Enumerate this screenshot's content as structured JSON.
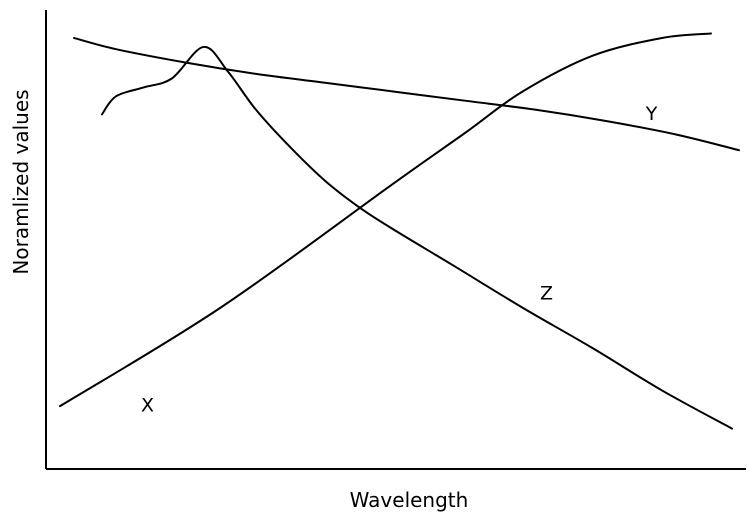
{
  "chart_data": {
    "type": "line",
    "title": "",
    "xlabel": "Wavelength",
    "ylabel": "Noramlized values",
    "xlim": [
      0,
      100
    ],
    "ylim": [
      0,
      100
    ],
    "grid": false,
    "legend": "none",
    "series": [
      {
        "name": "X",
        "x": [
          2,
          25,
          50,
          60,
          68,
          78,
          88,
          95
        ],
        "y": [
          14,
          36,
          64,
          75,
          84,
          92,
          96,
          97
        ]
      },
      {
        "name": "Y",
        "x": [
          4,
          10,
          20,
          30,
          40,
          50,
          60,
          70,
          80,
          90,
          99
        ],
        "y": [
          96,
          93.5,
          90.5,
          88,
          86,
          84,
          82,
          80,
          77.5,
          74.5,
          71
        ]
      },
      {
        "name": "Z",
        "x": [
          8,
          10,
          14,
          18,
          22.5,
          26,
          30,
          35,
          40,
          45,
          50,
          58,
          68,
          78,
          88,
          98
        ],
        "y": [
          79,
          83,
          85,
          87,
          94,
          88.5,
          80,
          71.5,
          64,
          58,
          53,
          45.5,
          36,
          27,
          17.5,
          9
        ]
      }
    ],
    "annotations": [
      {
        "text": "X",
        "x": 14.5,
        "y": 14
      },
      {
        "text": "Y",
        "x": 86.5,
        "y": 79
      },
      {
        "text": "Z",
        "x": 71.5,
        "y": 39
      }
    ]
  }
}
